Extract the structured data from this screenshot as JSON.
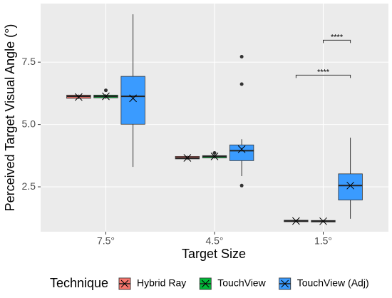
{
  "chart_data": {
    "type": "boxplot",
    "x_label": "Target Size",
    "y_label": "Perceived Target Visual Angle (°)",
    "categories": [
      "7.5°",
      "4.5°",
      "1.5°"
    ],
    "ylim": [
      0.7,
      9.85
    ],
    "yticks": [
      2.5,
      {
        "value": 5,
        "label": "5.0"
      },
      7.5
    ],
    "grid": true,
    "legend_title": "Technique",
    "legend_position": "bottom",
    "series": [
      {
        "name": "Hybrid Ray",
        "color": "#F8766D",
        "boxes": [
          {
            "low": 6.02,
            "q1": 6.05,
            "median": 6.13,
            "q3": 6.18,
            "high": 6.2,
            "mean": 6.1
          },
          {
            "low": 3.58,
            "q1": 3.62,
            "median": 3.66,
            "q3": 3.72,
            "high": 3.75,
            "mean": 3.66
          },
          {
            "low": 1.08,
            "q1": 1.1,
            "median": 1.13,
            "q3": 1.16,
            "high": 1.18,
            "mean": 1.13
          }
        ]
      },
      {
        "name": "TouchView",
        "color": "#00BA38",
        "boxes": [
          {
            "low": 6.03,
            "q1": 6.07,
            "median": 6.13,
            "q3": 6.18,
            "high": 6.22,
            "mean": 6.13,
            "outliers": [
              6.37
            ]
          },
          {
            "low": 3.63,
            "q1": 3.66,
            "median": 3.72,
            "q3": 3.75,
            "high": 3.8,
            "mean": 3.72,
            "outliers": [
              3.86
            ]
          },
          {
            "low": 1.07,
            "q1": 1.09,
            "median": 1.12,
            "q3": 1.15,
            "high": 1.17,
            "mean": 1.12
          }
        ]
      },
      {
        "name": "TouchView (Adj)",
        "color": "#3A9BFF",
        "boxes": [
          {
            "low": 3.3,
            "q1": 5.01,
            "median": 6.13,
            "q3": 6.93,
            "high": 9.42,
            "mean": 6.05
          },
          {
            "low": 2.93,
            "q1": 3.55,
            "median": 3.95,
            "q3": 4.18,
            "high": 4.41,
            "mean": 4.01,
            "outliers": [
              7.72,
              6.62,
              2.55
            ]
          },
          {
            "low": 1.22,
            "q1": 1.97,
            "median": 2.55,
            "q3": 3.02,
            "high": 4.47,
            "mean": 2.55
          }
        ]
      }
    ],
    "annotations": [
      {
        "text": "****",
        "category": 2,
        "from_series": 0,
        "to_series": 2,
        "y": 6.98
      },
      {
        "text": "****",
        "category": 2,
        "from_series": 1,
        "to_series": 2,
        "y": 8.38
      }
    ]
  }
}
